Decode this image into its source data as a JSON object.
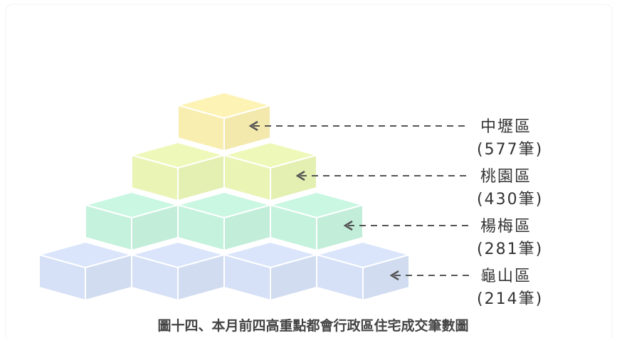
{
  "title": "圖十四、本月前四高重點都會行政區住宅成交筆數圖",
  "levels": [
    {
      "name": "中壢區",
      "count": "(577筆)",
      "color": "#fdf3b4"
    },
    {
      "name": "桃園區",
      "count": "(430筆)",
      "color": "#eef9b9"
    },
    {
      "name": "楊梅區",
      "count": "(281筆)",
      "color": "#c9f7e2"
    },
    {
      "name": "龜山區",
      "count": "(214筆)",
      "color": "#dae5fb"
    }
  ]
}
